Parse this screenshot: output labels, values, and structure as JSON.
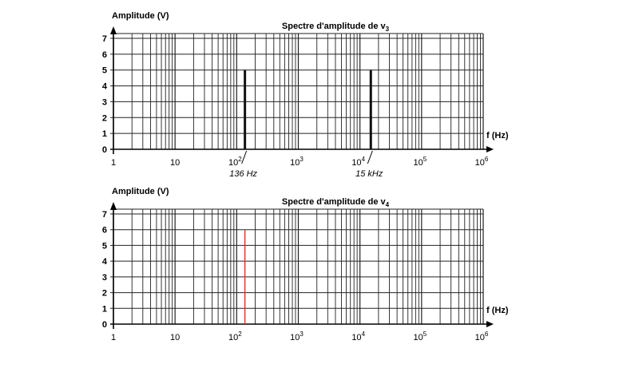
{
  "chart_data": [
    {
      "type": "bar",
      "title": "Spectre d'amplitude de v",
      "title_sub": "3",
      "ylabel": "Amplitude (V)",
      "xlabel": "f (Hz)",
      "x_scale": "log",
      "xlim": [
        1,
        1000000
      ],
      "ylim": [
        0,
        7
      ],
      "x_ticks": [
        {
          "base": "1",
          "exp": ""
        },
        {
          "base": "10",
          "exp": ""
        },
        {
          "base": "10",
          "exp": "2"
        },
        {
          "base": "10",
          "exp": "3"
        },
        {
          "base": "10",
          "exp": "4"
        },
        {
          "base": "10",
          "exp": "5"
        },
        {
          "base": "10",
          "exp": "6"
        }
      ],
      "y_ticks": [
        "0",
        "1",
        "2",
        "3",
        "4",
        "5",
        "6",
        "7"
      ],
      "grid": true,
      "bars": [
        {
          "f": 136,
          "amplitude": 5,
          "label": "136 Hz",
          "color": "#111111"
        },
        {
          "f": 15000,
          "amplitude": 5,
          "label": "15 kHz",
          "color": "#111111"
        }
      ]
    },
    {
      "type": "bar",
      "title": "Spectre d'amplitude de v",
      "title_sub": "4",
      "ylabel": "Amplitude (V)",
      "xlabel": "f (Hz)",
      "x_scale": "log",
      "xlim": [
        1,
        1000000
      ],
      "ylim": [
        0,
        7
      ],
      "x_ticks": [
        {
          "base": "1",
          "exp": ""
        },
        {
          "base": "10",
          "exp": ""
        },
        {
          "base": "10",
          "exp": "2"
        },
        {
          "base": "10",
          "exp": "3"
        },
        {
          "base": "10",
          "exp": "4"
        },
        {
          "base": "10",
          "exp": "5"
        },
        {
          "base": "10",
          "exp": "6"
        }
      ],
      "y_ticks": [
        "0",
        "1",
        "2",
        "3",
        "4",
        "5",
        "6",
        "7"
      ],
      "grid": true,
      "bars": [
        {
          "f": 136,
          "amplitude": 6,
          "label": "",
          "color": "#e0301e"
        }
      ]
    }
  ]
}
